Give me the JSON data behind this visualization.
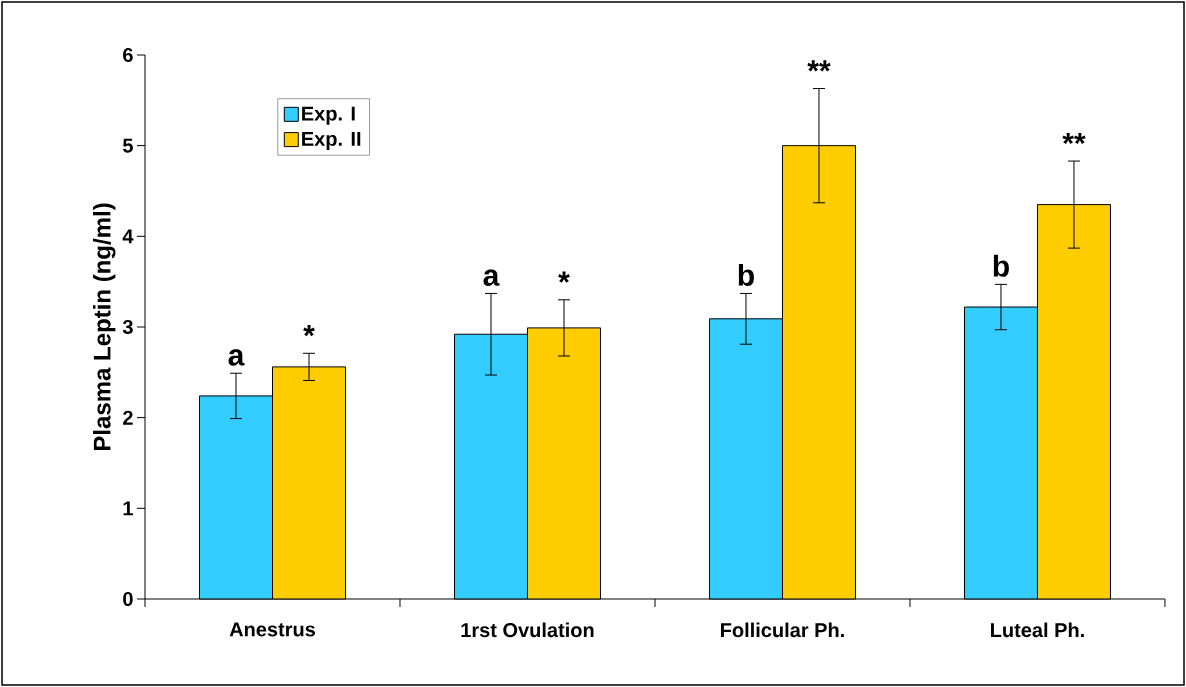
{
  "chart_data": {
    "type": "bar",
    "ylabel": "Plasma Leptin (ng/ml)",
    "categories": [
      "Anestrus",
      "1rst Ovulation",
      "Follicular Ph.",
      "Luteal Ph."
    ],
    "series": [
      {
        "name": "Exp. I",
        "color": "#33ccff",
        "values": [
          2.24,
          2.92,
          3.09,
          3.22
        ],
        "errors": [
          0.25,
          0.45,
          0.28,
          0.25
        ]
      },
      {
        "name": "Exp. II",
        "color": "#ffcc00",
        "values": [
          2.56,
          2.99,
          5.0,
          4.35
        ],
        "errors": [
          0.15,
          0.31,
          0.63,
          0.48
        ]
      }
    ],
    "annotations": [
      "a",
      "*",
      "a",
      "*",
      "b",
      "**",
      "b",
      "**"
    ],
    "ylim": [
      0,
      6
    ],
    "yticks": [
      0,
      1,
      2,
      3,
      4,
      5,
      6
    ],
    "legend": "top left",
    "grid": false
  }
}
